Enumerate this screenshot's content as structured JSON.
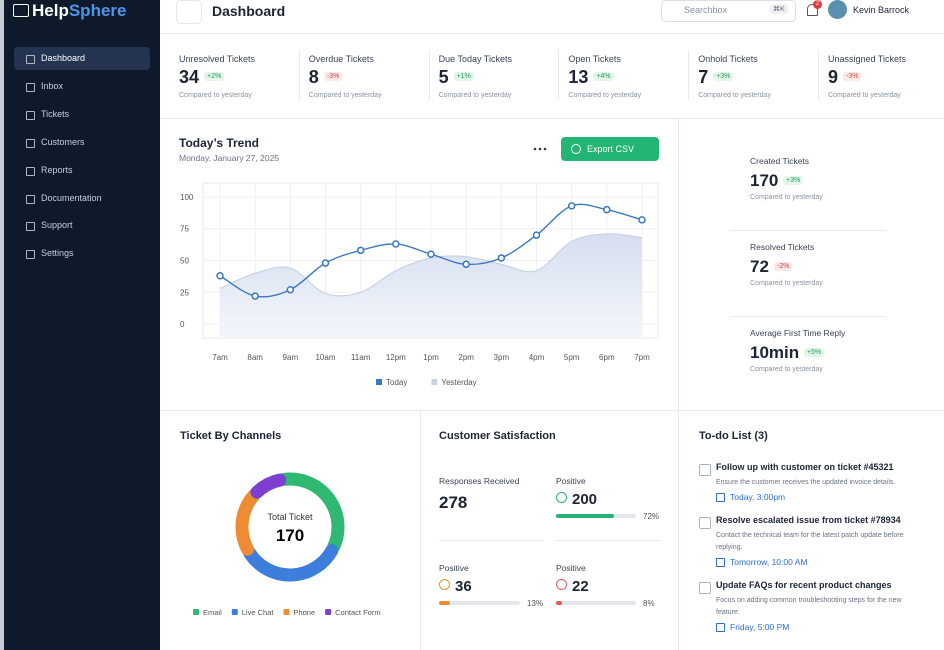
{
  "sidebar": {
    "brand_prefix": "Help",
    "brand_suffix": "Sphere",
    "nav": [
      "Dashboard",
      "Inbox",
      "Tickets",
      "Customers",
      "Reports",
      "Documentation",
      "Support",
      "Settings"
    ],
    "active": 0
  },
  "header": {
    "title": "Dashboard",
    "search_placeholder": "Searchbox",
    "shortcut": "⌘K",
    "notifications": 2,
    "user": "Kevin Barrock"
  },
  "stats": [
    {
      "label": "Unresolved Tickets",
      "value": 34,
      "change": "+2%",
      "note": "Compared to yesterday"
    },
    {
      "label": "Overdue Tickets",
      "value": 8,
      "change": "-3%",
      "note": "Compared to yesterday"
    },
    {
      "label": "Due Today Tickets",
      "value": 5,
      "change": "+1%",
      "note": "Compared to yesterday"
    },
    {
      "label": "Open Tickets",
      "value": 13,
      "change": "+4%",
      "note": "Compared to yesterday"
    },
    {
      "label": "Onhold Tickets",
      "value": 7,
      "change": "+3%",
      "note": "Compared to yesterday"
    },
    {
      "label": "Unassigned Tickets",
      "value": 9,
      "change": "-3%",
      "note": "Compared to yesterday"
    }
  ],
  "export_button": "Export CSV",
  "side_stats": [
    {
      "label": "Created Tickets",
      "value": "170",
      "change": "+3%",
      "note": "Compared to yesterday"
    },
    {
      "label": "Resolved Tickets",
      "value": "72",
      "change": "-2%",
      "note": "Compared to yesterday"
    },
    {
      "label": "Average First Time Reply",
      "value": "10min",
      "change": "+5%",
      "note": "Compared to yesterday"
    }
  ],
  "chart_data": [
    {
      "type": "line",
      "title": "Today’s Trend",
      "subtitle": "Monday, January 27, 2025",
      "categories": [
        "7am",
        "8am",
        "9am",
        "10am",
        "11am",
        "12pm",
        "1pm",
        "2pm",
        "3pm",
        "4pm",
        "5pm",
        "6pm",
        "7pm"
      ],
      "series": [
        {
          "name": "Today",
          "color": "#3a78c2",
          "values": [
            38,
            22,
            27,
            48,
            58,
            63,
            55,
            47,
            52,
            70,
            93,
            90,
            82
          ]
        },
        {
          "name": "Yesterday",
          "color": "#c9d3e6",
          "values": [
            28,
            40,
            44,
            24,
            25,
            42,
            52,
            53,
            47,
            42,
            65,
            71,
            68
          ]
        }
      ],
      "ylim": [
        -11,
        111
      ],
      "yticks": [
        0,
        25,
        50,
        75,
        100
      ],
      "grid": true
    },
    {
      "type": "donut",
      "title": "Ticket By Channels",
      "center_label": "Total Ticket",
      "total": 170,
      "categories": [
        "Email",
        "Live Chat",
        "Phone",
        "Contact Form"
      ],
      "values": [
        60,
        58,
        35,
        17
      ],
      "colors": [
        "#2fb872",
        "#3d7ddb",
        "#ee8c34",
        "#7c3fd1"
      ]
    }
  ],
  "satisfaction": {
    "title": "Customer Satisfaction",
    "responses": {
      "label": "Responses Received",
      "value": 278
    },
    "items": [
      {
        "label": "Positive",
        "value": 200,
        "percent": "72%",
        "color": "#22b573"
      },
      {
        "label": "Positive",
        "value": 36,
        "percent": "13%",
        "color": "#ee8c34"
      },
      {
        "label": "Positive",
        "value": 22,
        "percent": "8%",
        "color": "#e15b5b"
      }
    ]
  },
  "todo": {
    "title": "To-do List (3)",
    "items": [
      {
        "title": "Follow up with customer on ticket #45321",
        "description": "Ensure the customer receives the updated invoice details.",
        "due": "Today, 3:00pm"
      },
      {
        "title": "Resolve escalated issue from ticket #78934",
        "description": "Contact the technical team for the latest patch update before replying.",
        "due": "Tomorrow, 10:00 AM"
      },
      {
        "title": "Update FAQs for recent product changes",
        "description": "Focus on adding common troubleshooting steps for the new feature.",
        "due": "Friday, 5:00 PM"
      }
    ]
  }
}
